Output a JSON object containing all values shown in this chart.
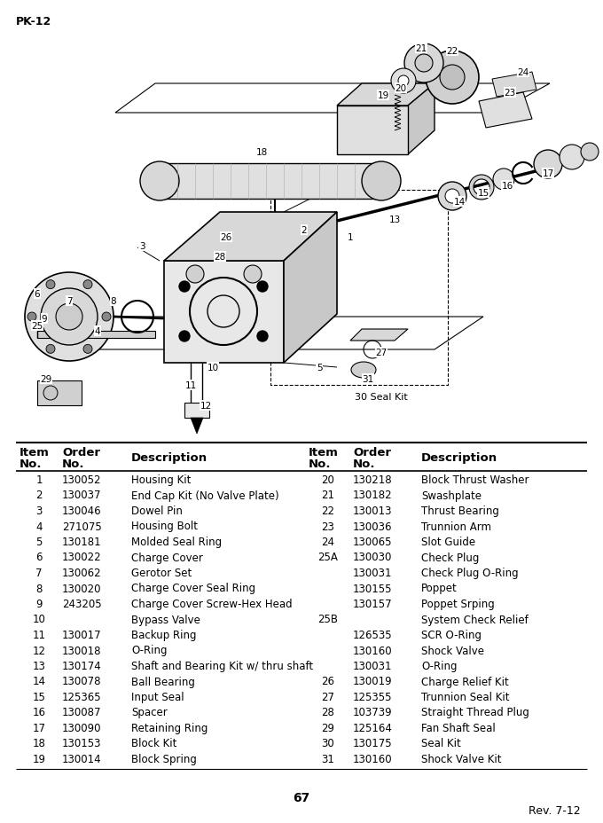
{
  "page_label": "PK-12",
  "page_number": "67",
  "rev_label": "Rev. 7-12",
  "seal_kit_label": "30 Seal Kit",
  "left_table": [
    [
      "1",
      "130052",
      "Housing Kit"
    ],
    [
      "2",
      "130037",
      "End Cap Kit (No Valve Plate)"
    ],
    [
      "3",
      "130046",
      "Dowel Pin"
    ],
    [
      "4",
      "271075",
      "Housing Bolt"
    ],
    [
      "5",
      "130181",
      "Molded Seal Ring"
    ],
    [
      "6",
      "130022",
      "Charge Cover"
    ],
    [
      "7",
      "130062",
      "Gerotor Set"
    ],
    [
      "8",
      "130020",
      "Charge Cover Seal Ring"
    ],
    [
      "9",
      "243205",
      "Charge Cover Screw-Hex Head"
    ],
    [
      "10",
      "",
      "Bypass Valve"
    ],
    [
      "11",
      "130017",
      "Backup Ring"
    ],
    [
      "12",
      "130018",
      "O-Ring"
    ],
    [
      "13",
      "130174",
      "Shaft and Bearing Kit w/ thru shaft"
    ],
    [
      "14",
      "130078",
      "Ball Bearing"
    ],
    [
      "15",
      "125365",
      "Input Seal"
    ],
    [
      "16",
      "130087",
      "Spacer"
    ],
    [
      "17",
      "130090",
      "Retaining Ring"
    ],
    [
      "18",
      "130153",
      "Block Kit"
    ],
    [
      "19",
      "130014",
      "Block Spring"
    ]
  ],
  "right_table": [
    [
      "20",
      "130218",
      "Block Thrust Washer"
    ],
    [
      "21",
      "130182",
      "Swashplate"
    ],
    [
      "22",
      "130013",
      "Thrust Bearing"
    ],
    [
      "23",
      "130036",
      "Trunnion Arm"
    ],
    [
      "24",
      "130065",
      "Slot Guide"
    ],
    [
      "25A",
      "130030",
      "Check Plug"
    ],
    [
      "",
      "130031",
      "Check Plug O-Ring"
    ],
    [
      "",
      "130155",
      "Poppet"
    ],
    [
      "",
      "130157",
      "Poppet Srping"
    ],
    [
      "25B",
      "",
      "System Check Relief"
    ],
    [
      "",
      "126535",
      "SCR O-Ring"
    ],
    [
      "",
      "130160",
      "Shock Valve"
    ],
    [
      "",
      "130031",
      "O-Ring"
    ],
    [
      "26",
      "130019",
      "Charge Relief Kit"
    ],
    [
      "27",
      "125355",
      "Trunnion Seal Kit"
    ],
    [
      "28",
      "103739",
      "Straight Thread Plug"
    ],
    [
      "29",
      "125164",
      "Fan Shaft Seal"
    ],
    [
      "30",
      "130175",
      "Seal Kit"
    ],
    [
      "31",
      "130160",
      "Shock Valve Kit"
    ]
  ],
  "bg_color": "#ffffff",
  "text_color": "#000000"
}
